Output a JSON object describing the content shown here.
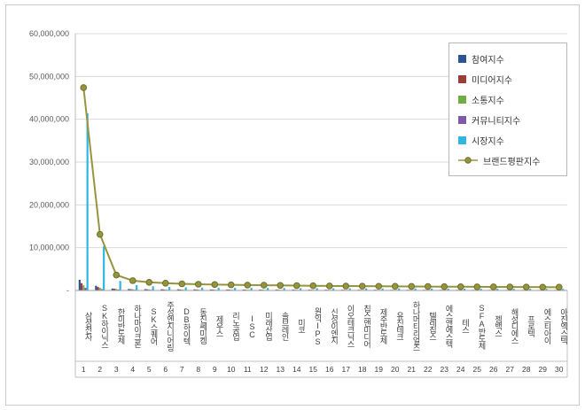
{
  "chart_data": {
    "type": "bar",
    "subtype": "bar+line combo, clustered bars with overlaid line",
    "title": "",
    "xlabel": "",
    "ylabel": "",
    "ylim": [
      0,
      60000000
    ],
    "grid": true,
    "legend_position": "top-right-inside",
    "y_ticks": [
      "-",
      "10,000,000",
      "20,000,000",
      "30,000,000",
      "40,000,000",
      "50,000,000",
      "60,000,000"
    ],
    "categories": [
      "삼성전자",
      "SK하이닉스",
      "한미반도체",
      "하나마이크론",
      "SK스퀘어",
      "주성엔지니어링",
      "DB하이텍",
      "동진쎄미켐",
      "제우스",
      "리노공업",
      "ISC",
      "미래산업",
      "솔브레인",
      "미코",
      "원익IPS",
      "신성이엔지",
      "이오테크닉스",
      "칩스앤미디어",
      "제주반도체",
      "유진테크",
      "하나머티리얼즈",
      "텔레칩스",
      "에스앤에스텍",
      "테스",
      "SFA반도체",
      "젬백스",
      "해성디에스",
      "프로텍",
      "에스티아이",
      "아진엑스텍"
    ],
    "category_numbers": [
      "1",
      "2",
      "3",
      "4",
      "5",
      "6",
      "7",
      "8",
      "9",
      "10",
      "11",
      "12",
      "13",
      "14",
      "15",
      "16",
      "17",
      "18",
      "19",
      "20",
      "21",
      "22",
      "23",
      "24",
      "25",
      "26",
      "27",
      "28",
      "29",
      "30"
    ],
    "series": [
      {
        "name": "참여지수",
        "key": "participation-index",
        "type": "bar",
        "color": "#2E5395",
        "values": [
          2500000,
          1100000,
          450000,
          330000,
          300000,
          280000,
          260000,
          245000,
          230000,
          220000,
          210000,
          200000,
          193000,
          187000,
          181000,
          175000,
          170000,
          165000,
          160000,
          156000,
          152000,
          148000,
          144000,
          140000,
          137000,
          134000,
          131000,
          128000,
          125000,
          122000
        ]
      },
      {
        "name": "미디어지수",
        "key": "media-index",
        "type": "bar",
        "color": "#A03B35",
        "values": [
          1700000,
          800000,
          400000,
          300000,
          270000,
          250000,
          235000,
          220000,
          208000,
          198000,
          189000,
          181000,
          174000,
          168000,
          162000,
          157000,
          152000,
          148000,
          144000,
          140000,
          136000,
          133000,
          130000,
          127000,
          124000,
          121000,
          118000,
          115000,
          113000,
          111000
        ]
      },
      {
        "name": "소통지수",
        "key": "communication-index",
        "type": "bar",
        "color": "#70AD47",
        "values": [
          1200000,
          600000,
          350000,
          260000,
          235000,
          218000,
          204000,
          192000,
          182000,
          173000,
          165000,
          158000,
          152000,
          147000,
          142000,
          137000,
          133000,
          129000,
          125000,
          122000,
          119000,
          116000,
          113000,
          110000,
          108000,
          106000,
          104000,
          102000,
          100000,
          98000
        ]
      },
      {
        "name": "커뮤니티지수",
        "key": "community-index",
        "type": "bar",
        "color": "#7C5CA8",
        "values": [
          600000,
          300000,
          200000,
          160000,
          148000,
          138000,
          130000,
          123000,
          117000,
          112000,
          107000,
          103000,
          99000,
          96000,
          93000,
          90000,
          87000,
          85000,
          83000,
          81000,
          79000,
          77000,
          75000,
          73000,
          72000,
          70000,
          69000,
          67000,
          66000,
          65000
        ]
      },
      {
        "name": "시장지수",
        "key": "market-index",
        "type": "bar",
        "color": "#2FB6E4",
        "values": [
          41400000,
          10300000,
          2200000,
          1250000,
          950000,
          810000,
          720000,
          670000,
          645000,
          615000,
          590000,
          580000,
          560000,
          530000,
          515000,
          500000,
          490000,
          480000,
          470000,
          460000,
          450000,
          440000,
          430000,
          420000,
          410000,
          400000,
          390000,
          380000,
          370000,
          360000
        ]
      },
      {
        "name": "브랜드평판지수",
        "key": "brand-reputation-index",
        "type": "line",
        "color": "#96953E",
        "marker_edge": "#6F6E2C",
        "values": [
          47400000,
          13100000,
          3600000,
          2300000,
          1903000,
          1696000,
          1549000,
          1450000,
          1382000,
          1318000,
          1261000,
          1222000,
          1178000,
          1128000,
          1093000,
          1059000,
          1032000,
          1007000,
          982000,
          959000,
          936000,
          914000,
          892000,
          870000,
          851000,
          831000,
          812000,
          792000,
          774000,
          756000
        ]
      }
    ],
    "colors": {
      "gridline": "#d9d9d9",
      "axis_line": "#9b9b9b",
      "box_line": "#bfbfbf",
      "tick_text": "#595959",
      "category_text": "#404040"
    }
  }
}
